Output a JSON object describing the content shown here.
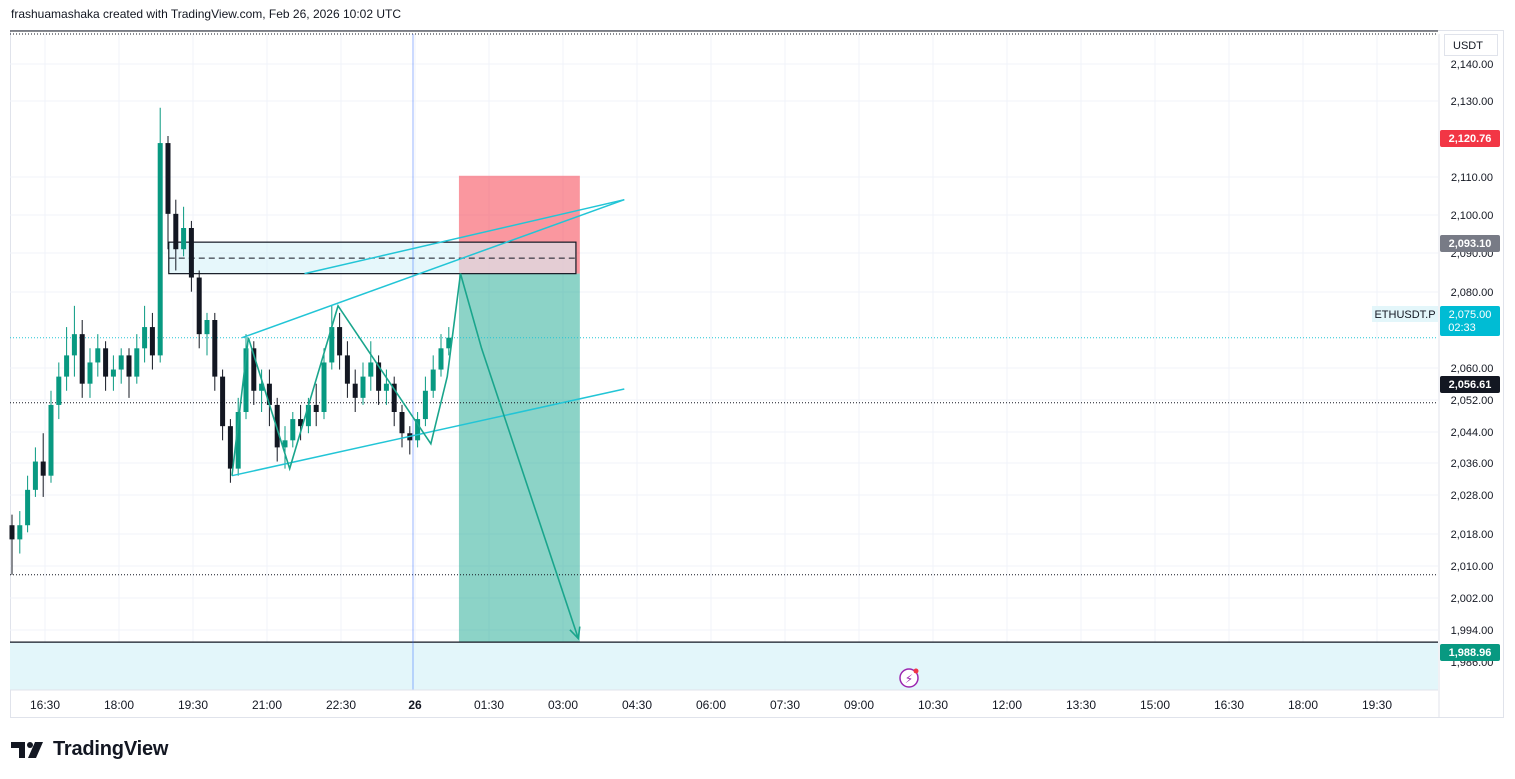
{
  "header": {
    "attribution": "frashuamashaka created with TradingView.com, Feb 26, 2026 10:02 UTC"
  },
  "brand": {
    "name": "TradingView"
  },
  "price_axis": {
    "unit": "USDT"
  },
  "colors": {
    "up": "#089981",
    "down": "#131722",
    "channel": "#22c5d6",
    "pattern": "#1aa58c",
    "stop": "#f7525f",
    "target": "#22ab94"
  },
  "chart_data": {
    "type": "candlestick",
    "symbol": "ETHUSDT.P",
    "x_tick_labels": [
      "16:30",
      "18:00",
      "19:30",
      "21:00",
      "22:30",
      "26",
      "01:30",
      "03:00",
      "04:30",
      "06:00",
      "07:30",
      "09:00",
      "10:30",
      "12:00",
      "13:30",
      "15:00",
      "16:30",
      "18:00",
      "19:30"
    ],
    "y_tick_labels": [
      "2,140.00",
      "2,130.00",
      "2,110.00",
      "2,100.00",
      "2,090.00",
      "2,080.00",
      "2,060.00",
      "2,052.00",
      "2,044.00",
      "2,036.00",
      "2,028.00",
      "2,018.00",
      "2,010.00",
      "2,002.00",
      "1,994.00",
      "1,986.00"
    ],
    "price_badges": [
      {
        "label": "2,120.76",
        "value": 2120.76,
        "color": "#f23645"
      },
      {
        "label": "2,093.10",
        "value": 2093.1,
        "color": "#787b86"
      },
      {
        "label": "2,075.00",
        "value": 2075.0,
        "color": "#00bcd4",
        "tag": "ETHUSDT.P",
        "countdown": "02:33"
      },
      {
        "label": "2,056.61",
        "value": 2056.61,
        "color": "#131722"
      },
      {
        "label": "1,988.96",
        "value": 1988.96,
        "color": "#089981"
      }
    ],
    "candles": [
      {
        "t": 0,
        "o": 2022,
        "h": 2025,
        "c": 2018,
        "l": 2008
      },
      {
        "t": 1,
        "o": 2018,
        "h": 2026,
        "c": 2022,
        "l": 2014
      },
      {
        "t": 2,
        "o": 2022,
        "h": 2036,
        "c": 2032,
        "l": 2020
      },
      {
        "t": 3,
        "o": 2032,
        "h": 2044,
        "c": 2040,
        "l": 2030
      },
      {
        "t": 4,
        "o": 2040,
        "h": 2048,
        "c": 2036,
        "l": 2030
      },
      {
        "t": 5,
        "o": 2036,
        "h": 2060,
        "c": 2056,
        "l": 2034
      },
      {
        "t": 6,
        "o": 2056,
        "h": 2068,
        "c": 2064,
        "l": 2052
      },
      {
        "t": 7,
        "o": 2064,
        "h": 2078,
        "c": 2070,
        "l": 2060
      },
      {
        "t": 8,
        "o": 2070,
        "h": 2084,
        "c": 2076,
        "l": 2064
      },
      {
        "t": 9,
        "o": 2076,
        "h": 2080,
        "c": 2062,
        "l": 2058
      },
      {
        "t": 10,
        "o": 2062,
        "h": 2072,
        "c": 2068,
        "l": 2058
      },
      {
        "t": 11,
        "o": 2068,
        "h": 2076,
        "c": 2072,
        "l": 2064
      },
      {
        "t": 12,
        "o": 2072,
        "h": 2074,
        "c": 2064,
        "l": 2060
      },
      {
        "t": 13,
        "o": 2064,
        "h": 2070,
        "c": 2066,
        "l": 2060
      },
      {
        "t": 14,
        "o": 2066,
        "h": 2072,
        "c": 2070,
        "l": 2062
      },
      {
        "t": 15,
        "o": 2070,
        "h": 2072,
        "c": 2064,
        "l": 2058
      },
      {
        "t": 16,
        "o": 2064,
        "h": 2076,
        "c": 2072,
        "l": 2062
      },
      {
        "t": 17,
        "o": 2072,
        "h": 2084,
        "c": 2078,
        "l": 2068
      },
      {
        "t": 18,
        "o": 2078,
        "h": 2082,
        "c": 2070,
        "l": 2066
      },
      {
        "t": 19,
        "o": 2070,
        "h": 2140,
        "c": 2130,
        "l": 2068
      },
      {
        "t": 20,
        "o": 2130,
        "h": 2132,
        "c": 2110,
        "l": 2100
      },
      {
        "t": 21,
        "o": 2110,
        "h": 2114,
        "c": 2100,
        "l": 2094
      },
      {
        "t": 22,
        "o": 2100,
        "h": 2112,
        "c": 2106,
        "l": 2098
      },
      {
        "t": 23,
        "o": 2106,
        "h": 2108,
        "c": 2092,
        "l": 2088
      },
      {
        "t": 24,
        "o": 2092,
        "h": 2094,
        "c": 2076,
        "l": 2072
      },
      {
        "t": 25,
        "o": 2076,
        "h": 2082,
        "c": 2080,
        "l": 2070
      },
      {
        "t": 26,
        "o": 2080,
        "h": 2082,
        "c": 2064,
        "l": 2060
      },
      {
        "t": 27,
        "o": 2064,
        "h": 2066,
        "c": 2050,
        "l": 2046
      },
      {
        "t": 28,
        "o": 2050,
        "h": 2052,
        "c": 2038,
        "l": 2034
      },
      {
        "t": 29,
        "o": 2038,
        "h": 2058,
        "c": 2054,
        "l": 2036
      },
      {
        "t": 30,
        "o": 2054,
        "h": 2076,
        "c": 2072,
        "l": 2052
      },
      {
        "t": 31,
        "o": 2072,
        "h": 2074,
        "c": 2060,
        "l": 2056
      },
      {
        "t": 32,
        "o": 2060,
        "h": 2066,
        "c": 2062,
        "l": 2054
      },
      {
        "t": 33,
        "o": 2062,
        "h": 2066,
        "c": 2056,
        "l": 2050
      },
      {
        "t": 34,
        "o": 2056,
        "h": 2058,
        "c": 2044,
        "l": 2040
      },
      {
        "t": 35,
        "o": 2044,
        "h": 2050,
        "c": 2046,
        "l": 2038
      },
      {
        "t": 36,
        "o": 2046,
        "h": 2054,
        "c": 2052,
        "l": 2044
      },
      {
        "t": 37,
        "o": 2052,
        "h": 2056,
        "c": 2050,
        "l": 2046
      },
      {
        "t": 38,
        "o": 2050,
        "h": 2058,
        "c": 2056,
        "l": 2048
      },
      {
        "t": 39,
        "o": 2056,
        "h": 2062,
        "c": 2054,
        "l": 2050
      },
      {
        "t": 40,
        "o": 2054,
        "h": 2072,
        "c": 2068,
        "l": 2052
      },
      {
        "t": 41,
        "o": 2068,
        "h": 2084,
        "c": 2078,
        "l": 2066
      },
      {
        "t": 42,
        "o": 2078,
        "h": 2082,
        "c": 2070,
        "l": 2066
      },
      {
        "t": 43,
        "o": 2070,
        "h": 2074,
        "c": 2062,
        "l": 2058
      },
      {
        "t": 44,
        "o": 2062,
        "h": 2066,
        "c": 2058,
        "l": 2054
      },
      {
        "t": 45,
        "o": 2058,
        "h": 2068,
        "c": 2064,
        "l": 2056
      },
      {
        "t": 46,
        "o": 2064,
        "h": 2074,
        "c": 2068,
        "l": 2060
      },
      {
        "t": 47,
        "o": 2068,
        "h": 2070,
        "c": 2060,
        "l": 2056
      },
      {
        "t": 48,
        "o": 2060,
        "h": 2066,
        "c": 2062,
        "l": 2056
      },
      {
        "t": 49,
        "o": 2062,
        "h": 2064,
        "c": 2054,
        "l": 2050
      },
      {
        "t": 50,
        "o": 2054,
        "h": 2056,
        "c": 2048,
        "l": 2044
      },
      {
        "t": 51,
        "o": 2048,
        "h": 2050,
        "c": 2046,
        "l": 2042
      },
      {
        "t": 52,
        "o": 2046,
        "h": 2054,
        "c": 2052,
        "l": 2044
      },
      {
        "t": 53,
        "o": 2052,
        "h": 2064,
        "c": 2060,
        "l": 2050
      },
      {
        "t": 54,
        "o": 2060,
        "h": 2070,
        "c": 2066,
        "l": 2058
      },
      {
        "t": 55,
        "o": 2066,
        "h": 2076,
        "c": 2072,
        "l": 2064
      },
      {
        "t": 56,
        "o": 2072,
        "h": 2078,
        "c": 2075,
        "l": 2070
      }
    ],
    "drawings": {
      "channel_upper": [
        {
          "t": 37.5,
          "p": 2093.1
        },
        {
          "t": 78.5,
          "p": 2114
        }
      ],
      "channel_lower": [
        {
          "t": 28.2,
          "p": 2036
        },
        {
          "t": 78.5,
          "p": 2060.5
        }
      ],
      "pattern_rising": [
        {
          "t": 29.5,
          "p": 2075
        },
        {
          "t": 78.5,
          "p": 2114
        }
      ],
      "zigzag": [
        {
          "t": 28.2,
          "p": 2036
        },
        {
          "t": 30.3,
          "p": 2075
        },
        {
          "t": 35.6,
          "p": 2038
        },
        {
          "t": 41.8,
          "p": 2084
        },
        {
          "t": 47.3,
          "p": 2066
        },
        {
          "t": 53.7,
          "p": 2045
        },
        {
          "t": 55.8,
          "p": 2064
        },
        {
          "t": 57.5,
          "p": 2093.1
        },
        {
          "t": 60.2,
          "p": 2072
        },
        {
          "t": 72.6,
          "p": 1990
        }
      ],
      "zone_box": {
        "t1": 20.1,
        "t2": 72.3,
        "p_top": 2102,
        "p_bot": 2093.1,
        "p_mid": 2097.5
      },
      "short_position": {
        "t1": 57.3,
        "t2": 72.8,
        "entry": 2093.1,
        "stop": 2120.76,
        "target": 1988.96
      },
      "vline_t": 26.5,
      "dotted_levels": [
        2075,
        2056.61,
        2008
      ]
    }
  }
}
